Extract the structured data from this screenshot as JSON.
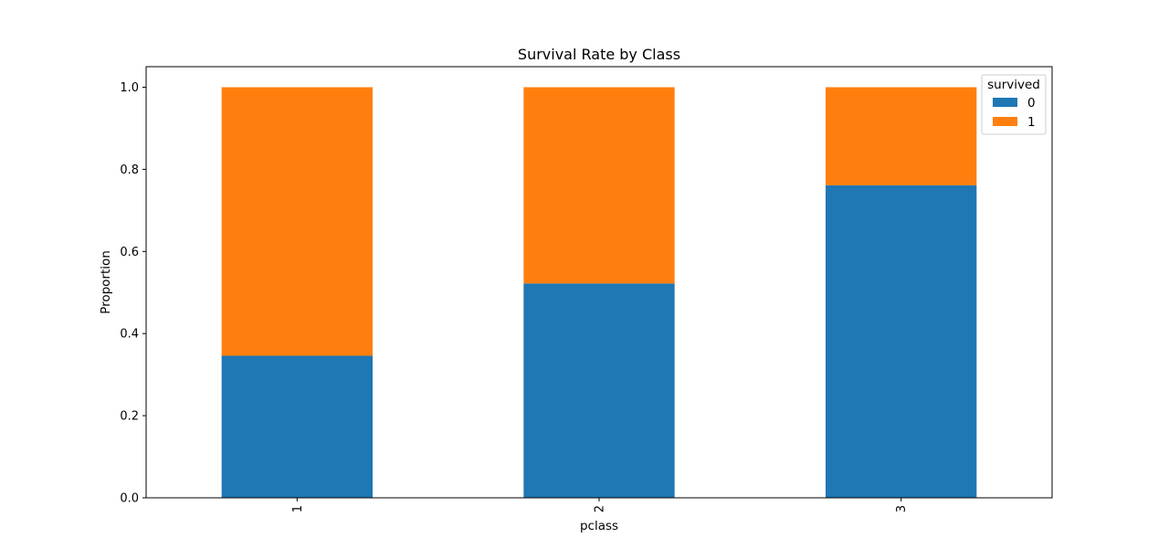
{
  "chart_data": {
    "type": "bar",
    "stacked": true,
    "title": "Survival Rate by Class",
    "xlabel": "pclass",
    "ylabel": "Proportion",
    "categories": [
      "1",
      "2",
      "3"
    ],
    "series": [
      {
        "name": "0",
        "color": "#1f77b4",
        "values": [
          0.346,
          0.522,
          0.761
        ]
      },
      {
        "name": "1",
        "color": "#ff7f0e",
        "values": [
          0.654,
          0.478,
          0.239
        ]
      }
    ],
    "ylim": [
      0,
      1.05
    ],
    "yticks": [
      0.0,
      0.2,
      0.4,
      0.6,
      0.8,
      1.0
    ],
    "ytick_labels": [
      "0.0",
      "0.2",
      "0.4",
      "0.6",
      "0.8",
      "1.0"
    ],
    "grid": false,
    "legend": {
      "title": "survived",
      "placement": "top-right"
    }
  }
}
